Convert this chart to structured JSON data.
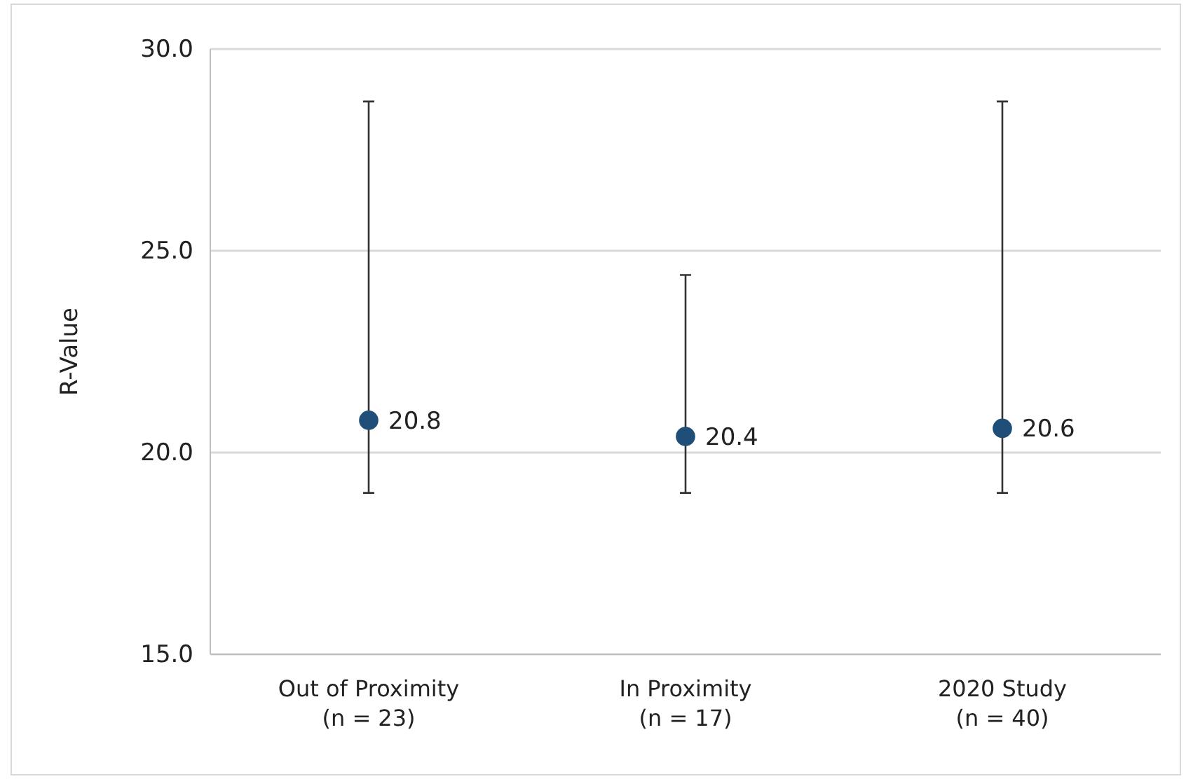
{
  "chart_data": {
    "type": "scatter",
    "ylabel": "R-Value",
    "categories": [
      "Out of Proximity\n(n = 23)",
      "In Proximity\n(n = 17)",
      "2020 Study\n(n = 40)"
    ],
    "values": [
      20.8,
      20.4,
      20.6
    ],
    "errors": [
      [
        19.0,
        28.7
      ],
      [
        19.0,
        24.4
      ],
      [
        19.0,
        28.7
      ]
    ],
    "color": "#1f4e79",
    "marker": "circle",
    "data_labels": true,
    "ylim": [
      15,
      30
    ],
    "yticks": [
      {
        "value": 15,
        "label": "15.0"
      },
      {
        "value": 20,
        "label": "20.0"
      },
      {
        "value": 25,
        "label": "25.0"
      },
      {
        "value": 30,
        "label": "30.0"
      }
    ],
    "grid": "y"
  }
}
